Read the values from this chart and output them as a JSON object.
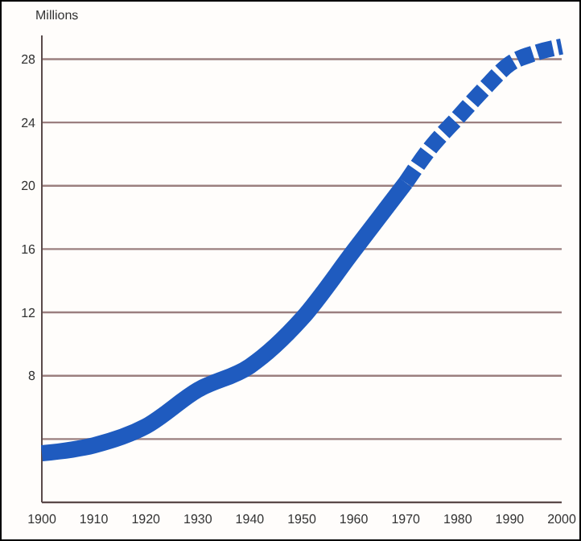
{
  "chart_data": {
    "type": "line",
    "ylabel": "Millions",
    "series": [
      {
        "color": "#1f5bbf",
        "line_style": "solid",
        "x": [
          1900,
          1910,
          1920,
          1930,
          1940,
          1950,
          1960,
          1970
        ],
        "values": [
          3.1,
          3.6,
          4.8,
          7.1,
          8.6,
          11.6,
          15.9,
          20.2
        ]
      },
      {
        "color": "#1f5bbf",
        "line_style": "dashed",
        "x": [
          1970,
          1975,
          1980,
          1985,
          1990,
          1995,
          2000
        ],
        "values": [
          20.2,
          22.5,
          24.3,
          26.1,
          27.7,
          28.4,
          28.8
        ]
      }
    ],
    "xlim": [
      1900,
      2000
    ],
    "xticks": [
      1900,
      1910,
      1920,
      1930,
      1940,
      1950,
      1960,
      1970,
      1980,
      1990,
      2000
    ],
    "ylim": [
      0,
      29.5
    ],
    "yticks": [
      {
        "value": 0,
        "label": null
      },
      {
        "value": 4,
        "label": null
      },
      8,
      12,
      16,
      20,
      24,
      28
    ],
    "grid": "y",
    "marker": "none"
  }
}
